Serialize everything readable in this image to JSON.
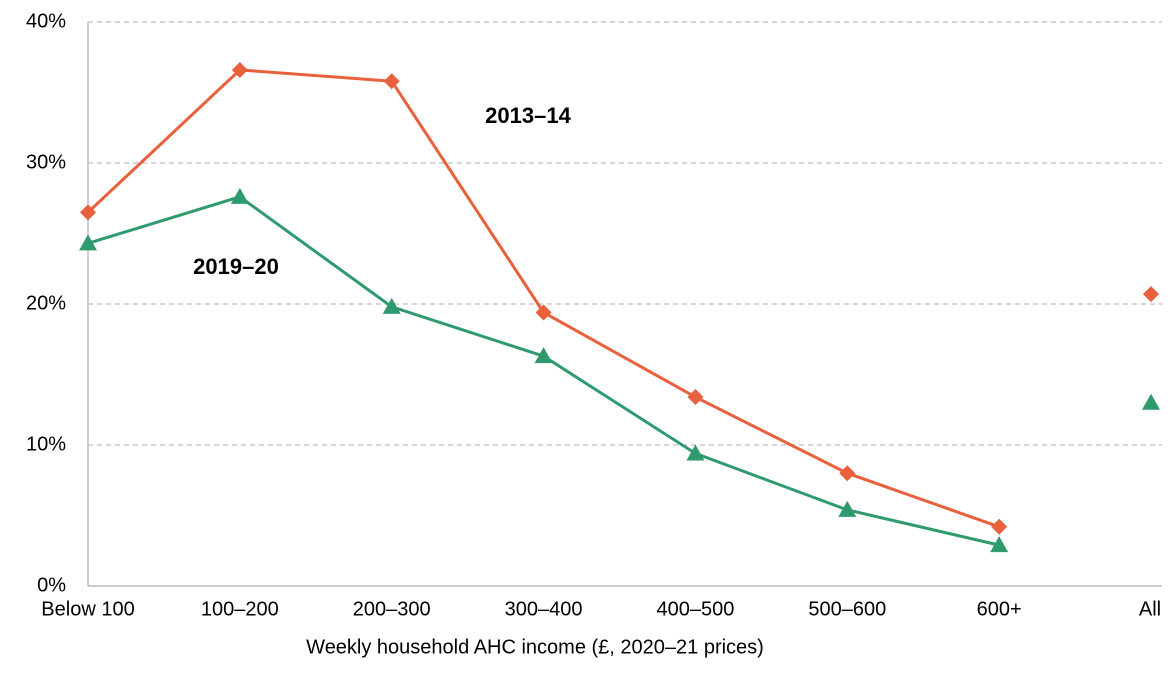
{
  "chart_data": {
    "type": "line",
    "x_label": "Weekly household AHC income (£, 2020–21 prices)",
    "categories": [
      "Below 100",
      "100–200",
      "200–300",
      "300–400",
      "400–500",
      "500–600",
      "600+",
      "All"
    ],
    "series": [
      {
        "name": "2013–14",
        "color": "#e8603c",
        "marker": "diamond",
        "values": [
          26.5,
          36.6,
          35.8,
          19.4,
          13.4,
          8.0,
          4.2,
          20.7
        ]
      },
      {
        "name": "2019–20",
        "color": "#2e9a6e",
        "marker": "triangle",
        "values": [
          24.3,
          27.6,
          19.8,
          16.3,
          9.4,
          5.4,
          2.9,
          13.0
        ]
      }
    ],
    "ylim": [
      0,
      40
    ],
    "yticks": [
      {
        "value": 0,
        "label": "0%"
      },
      {
        "value": 10,
        "label": "10%"
      },
      {
        "value": 20,
        "label": "20%"
      },
      {
        "value": 30,
        "label": "30%"
      },
      {
        "value": 40,
        "label": "40%"
      }
    ],
    "grid": true
  }
}
